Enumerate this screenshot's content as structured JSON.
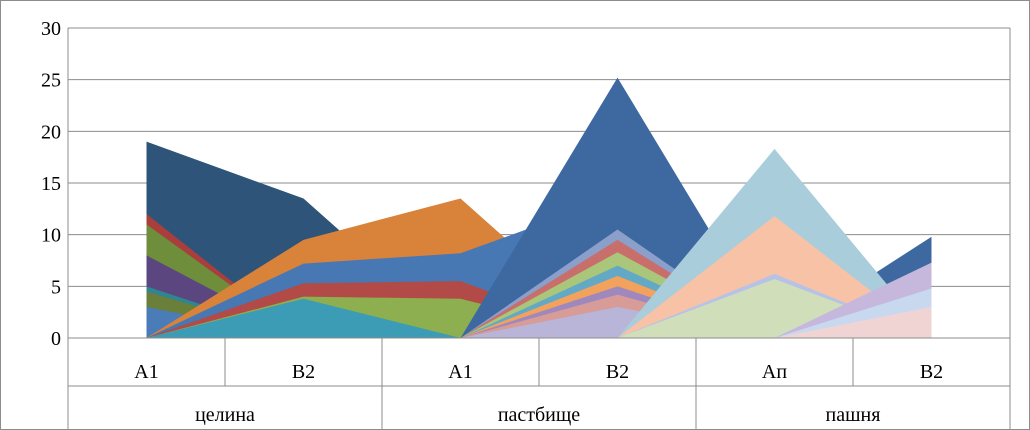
{
  "chart_data": {
    "type": "area",
    "ylim": [
      0,
      30
    ],
    "yticks": [
      0,
      5,
      10,
      15,
      20,
      25,
      30
    ],
    "grid": true,
    "legend": "none",
    "categories": [
      {
        "label": "A1",
        "group": "целина"
      },
      {
        "label": "B2",
        "group": "целина"
      },
      {
        "label": "A1",
        "group": "пастбище"
      },
      {
        "label": "B2",
        "group": "пастбище"
      },
      {
        "label": "Ап",
        "group": "пашня"
      },
      {
        "label": "B2",
        "group": "пашня"
      }
    ],
    "groups": [
      {
        "label": "целина",
        "span": 2
      },
      {
        "label": "пастбище",
        "span": 2
      },
      {
        "label": "пашня",
        "span": 2
      }
    ],
    "series": [
      {
        "color": "#2f5479",
        "values": [
          19,
          13.5,
          0,
          0,
          0,
          0
        ]
      },
      {
        "color": "#a83f3c",
        "values": [
          12,
          0,
          0,
          0,
          0,
          0
        ]
      },
      {
        "color": "#6f8e3c",
        "values": [
          11,
          0,
          0,
          0,
          0,
          0
        ]
      },
      {
        "color": "#5b4680",
        "values": [
          8,
          0,
          0,
          0,
          0,
          0
        ]
      },
      {
        "color": "#2f8591",
        "values": [
          5,
          0,
          0,
          0,
          0,
          0
        ]
      },
      {
        "color": "#6a7f3a",
        "values": [
          4.5,
          0,
          0,
          0,
          0,
          0
        ]
      },
      {
        "color": "#d3802f",
        "values": [
          2.8,
          0,
          0,
          0,
          0,
          0
        ]
      },
      {
        "color": "#4a7cb8",
        "values": [
          3,
          0,
          0,
          0,
          0,
          0
        ]
      },
      {
        "color": "#d9823a",
        "values": [
          0,
          9.5,
          13.5,
          0,
          0,
          0
        ]
      },
      {
        "color": "#4878b4",
        "values": [
          0,
          7.2,
          8.2,
          13.7,
          0,
          0
        ]
      },
      {
        "color": "#b24a47",
        "values": [
          0,
          5.3,
          5.5,
          0,
          0,
          0
        ]
      },
      {
        "color": "#8daf4f",
        "values": [
          0,
          4,
          3.8,
          0,
          0,
          0
        ]
      },
      {
        "color": "#3c9bb5",
        "values": [
          0,
          3.8,
          0,
          0,
          0,
          0
        ]
      },
      {
        "color": "#3e68a0",
        "values": [
          0,
          0,
          0,
          25.2,
          0,
          9.8
        ]
      },
      {
        "color": "#8b9fcb",
        "values": [
          0,
          0,
          0,
          10.5,
          0,
          0
        ]
      },
      {
        "color": "#c86e6b",
        "values": [
          0,
          0,
          0,
          9.5,
          0,
          0
        ]
      },
      {
        "color": "#a9c67a",
        "values": [
          0,
          0,
          0,
          8.3,
          0,
          0
        ]
      },
      {
        "color": "#63a9c5",
        "values": [
          0,
          0,
          0,
          7,
          0,
          0
        ]
      },
      {
        "color": "#f2a25c",
        "values": [
          0,
          0,
          0,
          6,
          0,
          0
        ]
      },
      {
        "color": "#9e88bd",
        "values": [
          0,
          0,
          0,
          5,
          0,
          0
        ]
      },
      {
        "color": "#d79b98",
        "values": [
          0,
          0,
          0,
          4.2,
          0,
          0
        ]
      },
      {
        "color": "#b8b5d9",
        "values": [
          0,
          0,
          0,
          3,
          0,
          0
        ]
      },
      {
        "color": "#a9cddb",
        "values": [
          0,
          0,
          0,
          0,
          18.3,
          0
        ]
      },
      {
        "color": "#f7c2a6",
        "values": [
          0,
          0,
          0,
          0,
          11.8,
          0
        ]
      },
      {
        "color": "#b7c3e6",
        "values": [
          0,
          0,
          0,
          0,
          6.2,
          0
        ]
      },
      {
        "color": "#d0dfba",
        "values": [
          0,
          0,
          0,
          0,
          5.7,
          0
        ]
      },
      {
        "color": "#c6b8dc",
        "values": [
          0,
          0,
          0,
          0,
          0,
          7.3
        ]
      },
      {
        "color": "#c7d8ef",
        "values": [
          0,
          0,
          0,
          0,
          0,
          4.8
        ]
      },
      {
        "color": "#f0d4d4",
        "values": [
          0,
          0,
          0,
          0,
          0,
          3
        ]
      }
    ]
  }
}
